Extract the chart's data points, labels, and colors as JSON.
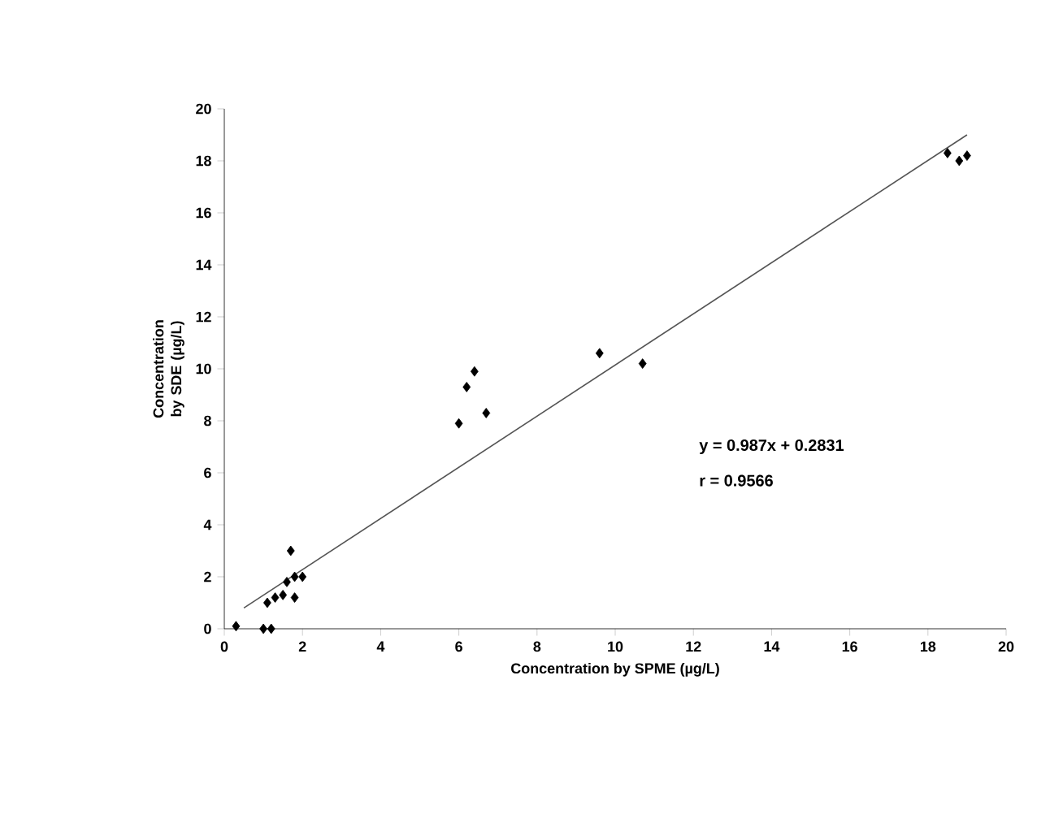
{
  "chart_data": {
    "type": "scatter",
    "xlabel": "Concentration by SPME (µg/L)",
    "ylabel": "Concentration by SDE (µg/L)",
    "xlim": [
      0,
      20
    ],
    "ylim": [
      0,
      20
    ],
    "xticks": [
      0,
      2,
      4,
      6,
      8,
      10,
      12,
      14,
      16,
      18,
      20
    ],
    "yticks": [
      0,
      2,
      4,
      6,
      8,
      10,
      12,
      14,
      16,
      18,
      20
    ],
    "series": [
      {
        "type": "scatter",
        "marker": "diamond",
        "color": "#000000",
        "x": [
          0.3,
          1.0,
          1.2,
          1.1,
          1.3,
          1.5,
          1.6,
          1.7,
          1.8,
          1.8,
          2.0,
          6.0,
          6.2,
          6.4,
          6.7,
          9.6,
          10.7,
          18.5,
          18.8,
          19.0
        ],
        "values": [
          0.1,
          0,
          0,
          1.0,
          1.2,
          1.3,
          1.8,
          3.0,
          1.2,
          2.0,
          2.0,
          7.9,
          9.3,
          9.9,
          8.3,
          10.6,
          10.2,
          18.3,
          18.0,
          18.2
        ]
      },
      {
        "type": "line",
        "marker": "none",
        "color": "#555555",
        "x": [
          0.5,
          19
        ],
        "values": [
          0.8,
          19.0
        ]
      }
    ],
    "annotations": [
      "y = 0.987x + 0.2831",
      "r = 0.9566"
    ]
  }
}
